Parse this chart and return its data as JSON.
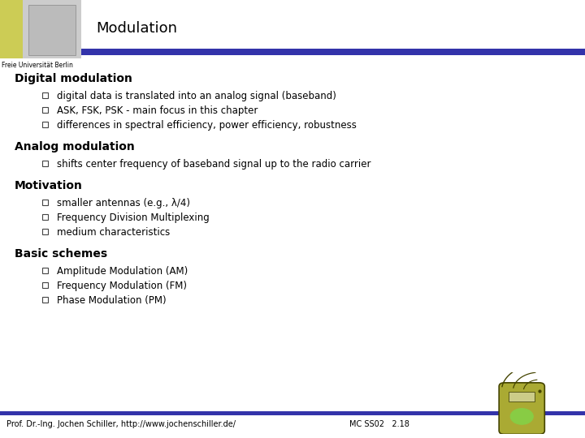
{
  "title": "Modulation",
  "bg_color": "#ffffff",
  "header_bar_color": "#3333aa",
  "title_font_size": 13,
  "title_color": "#000000",
  "section_font_size": 10,
  "section_color": "#000000",
  "bullet_font_size": 8.5,
  "bullet_color": "#000000",
  "footer_text_left": "Prof. Dr.-Ing. Jochen Schiller, http://www.jochenschiller.de/",
  "footer_text_right": "MC SS02   2.18",
  "footer_font_size": 7,
  "footer_bar_color": "#3333aa",
  "logo_yellow": "#cccc55",
  "logo_gray": "#cccccc",
  "freie_text": "Freie Universität Berlin",
  "sections": [
    {
      "heading": "Digital modulation",
      "bullets": [
        "digital data is translated into an analog signal (baseband)",
        "ASK, FSK, PSK - main focus in this chapter",
        "differences in spectral efficiency, power efficiency, robustness"
      ]
    },
    {
      "heading": "Analog modulation",
      "bullets": [
        "shifts center frequency of baseband signal up to the radio carrier"
      ]
    },
    {
      "heading": "Motivation",
      "bullets": [
        "smaller antennas (e.g., λ/4)",
        "Frequency Division Multiplexing",
        "medium characteristics"
      ]
    },
    {
      "heading": "Basic schemes",
      "bullets": [
        "Amplitude Modulation (AM)",
        "Frequency Modulation (FM)",
        "Phase Modulation (PM)"
      ]
    }
  ]
}
